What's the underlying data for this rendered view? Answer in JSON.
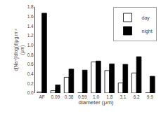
{
  "chart_data": {
    "type": "bar",
    "categories": [
      "AF",
      "0.09",
      "0.38",
      "0.59",
      "1.0",
      "1.8",
      "3.1",
      "6.2",
      "9.9"
    ],
    "series": [
      {
        "name": "day",
        "color": "white",
        "values": [
          0.02,
          0.05,
          0.33,
          0.0,
          0.65,
          0.47,
          0.21,
          0.42,
          0.0
        ]
      },
      {
        "name": "night",
        "color": "black",
        "values": [
          1.67,
          0.17,
          0.5,
          0.48,
          0.67,
          0.61,
          0.6,
          0.76,
          0.35
        ]
      }
    ],
    "xlabel": "diameter (μm)",
    "ylabel": "d[Na+]/dlog(d)μg.m⁻³\n(μm)",
    "ylim": [
      0.0,
      1.8
    ],
    "yticks": [
      {
        "value": 0.0,
        "label": "0.0"
      },
      0.2,
      0.4,
      0.6,
      0.8,
      {
        "value": 1.0,
        "label": "1.0"
      },
      1.2,
      1.4,
      1.6,
      1.8
    ],
    "grid": false,
    "legend": "upper right"
  }
}
